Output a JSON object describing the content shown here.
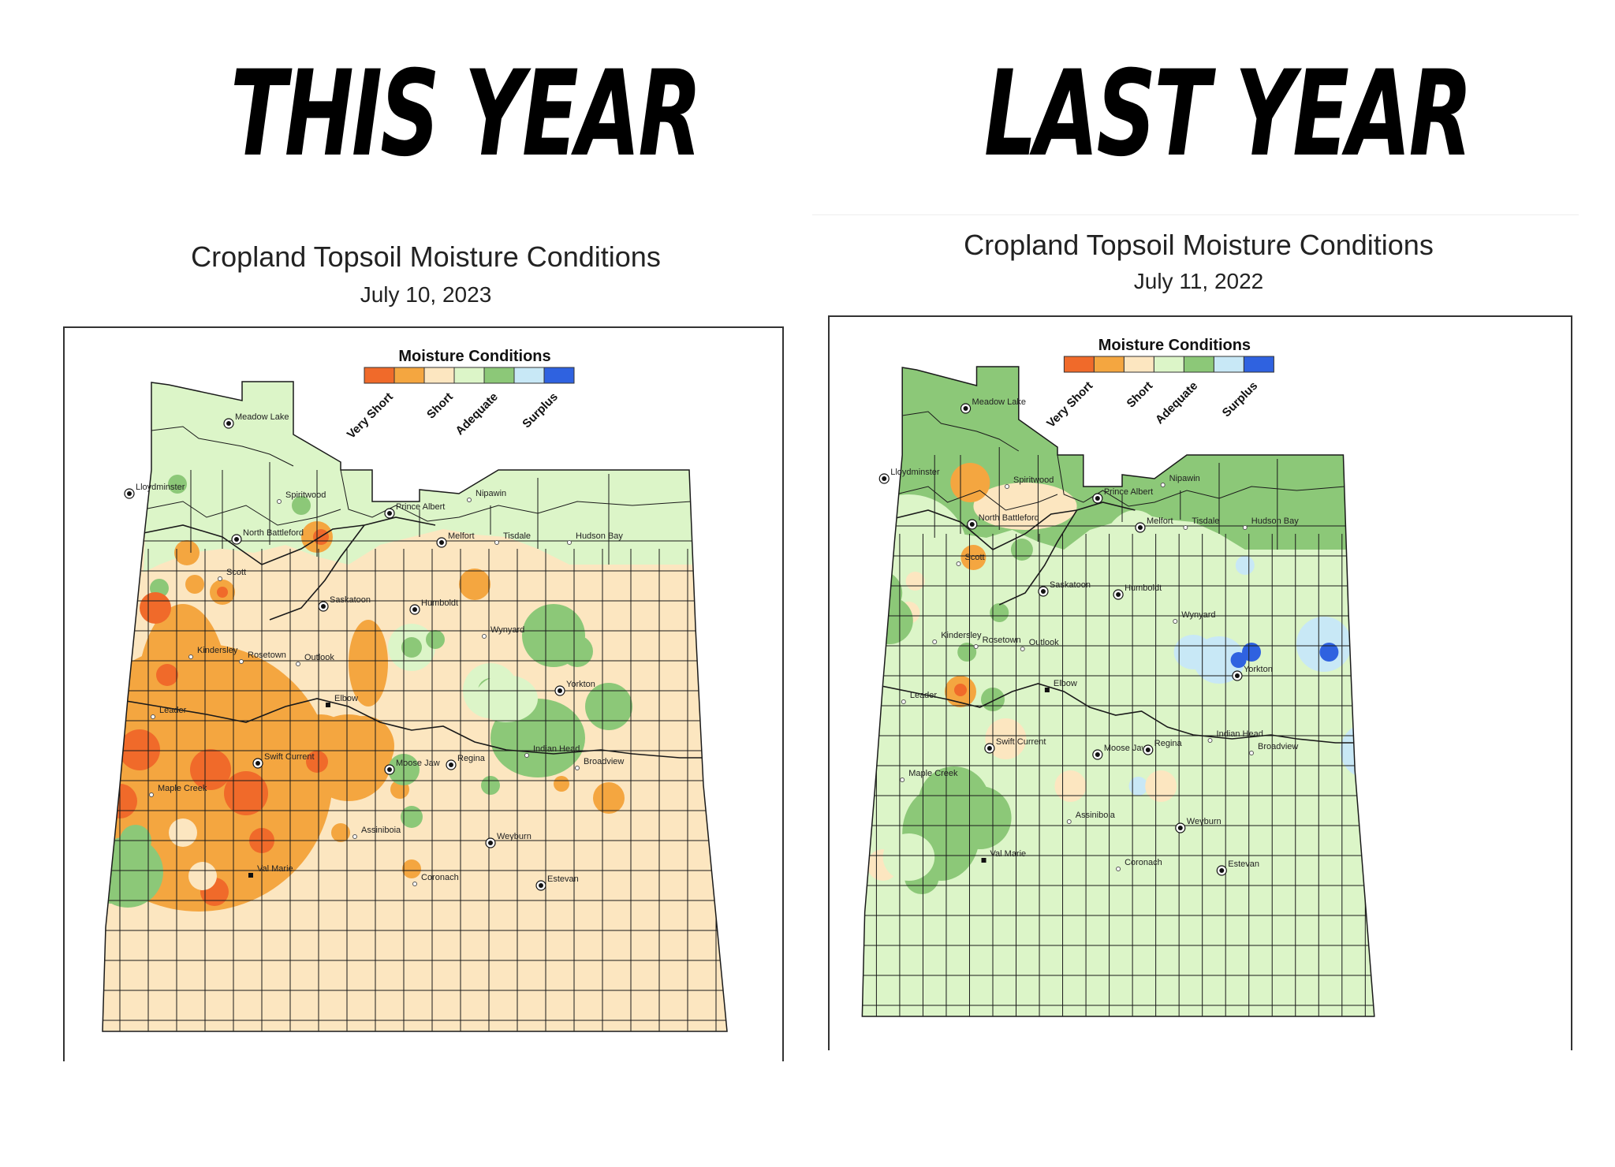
{
  "headlines": {
    "left": "THIS YEAR",
    "right": "LAST YEAR"
  },
  "legend": {
    "title": "Moisture Conditions",
    "labels": [
      "Very Short",
      "Short",
      "Adequate",
      "Surplus"
    ],
    "colors": [
      "#f06a2a",
      "#f4a640",
      "#fce6c0",
      "#dcf5c8",
      "#8cc878",
      "#c8e8f6",
      "#2f62e0"
    ]
  },
  "maps": [
    {
      "title": "Cropland Topsoil Moisture Conditions",
      "date": "July 10, 2023",
      "base_color": "#fce6c0",
      "upper_region_color": "#dcf5c8",
      "towns": [
        "Meadow Lake",
        "Lloydminster",
        "Spiritwood",
        "Prince Albert",
        "Nipawin",
        "North Battleford",
        "Melfort",
        "Tisdale",
        "Hudson Bay",
        "Scott",
        "Saskatoon",
        "Humboldt",
        "Wynyard",
        "Kindersley",
        "Rosetown",
        "Outlook",
        "Yorkton",
        "Elbow",
        "Leader",
        "Swift Current",
        "Moose Jaw",
        "Regina",
        "Indian Head",
        "Broadview",
        "Maple Creek",
        "Assiniboia",
        "Weyburn",
        "Val Marie",
        "Coronach",
        "Estevan"
      ]
    },
    {
      "title": "Cropland Topsoil Moisture Conditions",
      "date": "July 11, 2022",
      "base_color": "#dcf5c8",
      "upper_region_color": "#8cc878",
      "towns": [
        "Meadow Lake",
        "Lloydminster",
        "Spiritwood",
        "Prince Albert",
        "Nipawin",
        "North Battleford",
        "Melfort",
        "Tisdale",
        "Hudson Bay",
        "Scott",
        "Saskatoon",
        "Humboldt",
        "Wynyard",
        "Kindersley",
        "Rosetown",
        "Outlook",
        "Yorkton",
        "Elbow",
        "Leader",
        "Swift Current",
        "Moose Jaw",
        "Regina",
        "Indian Head",
        "Broadview",
        "Maple Creek",
        "Assiniboia",
        "Weyburn",
        "Val Marie",
        "Coronach",
        "Estevan"
      ]
    }
  ]
}
